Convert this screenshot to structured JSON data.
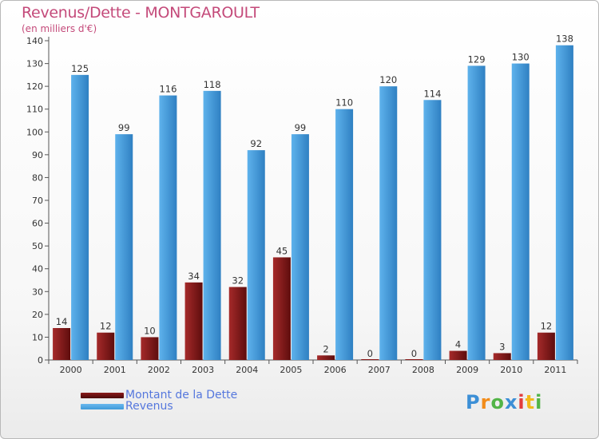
{
  "chart_data": {
    "type": "bar",
    "title": "Revenus/Dette - MONTGAROULT",
    "subtitle": "(en milliers d'€)",
    "categories": [
      "2000",
      "2001",
      "2002",
      "2003",
      "2004",
      "2005",
      "2006",
      "2007",
      "2008",
      "2009",
      "2010",
      "2011"
    ],
    "series": [
      {
        "name": "Montant de la Dette",
        "color": "#8b1a1a",
        "values": [
          14,
          12,
          10,
          34,
          32,
          45,
          2,
          0,
          0,
          4,
          3,
          12
        ]
      },
      {
        "name": "Revenus",
        "color": "#3f9ad8",
        "values": [
          125,
          99,
          116,
          118,
          92,
          99,
          110,
          120,
          114,
          129,
          130,
          138
        ]
      }
    ],
    "ylim": [
      0,
      140
    ],
    "yticks": [
      0,
      10,
      20,
      30,
      40,
      50,
      60,
      70,
      80,
      90,
      100,
      110,
      120,
      130,
      140
    ],
    "grid": false,
    "legend_position": "bottom-left"
  },
  "logo": {
    "text": "Proxiti",
    "colors": [
      "#3c8fd6",
      "#f28c1a",
      "#52b447",
      "#3c8fd6",
      "#e23c3c",
      "#f2b91a",
      "#52b447"
    ]
  }
}
